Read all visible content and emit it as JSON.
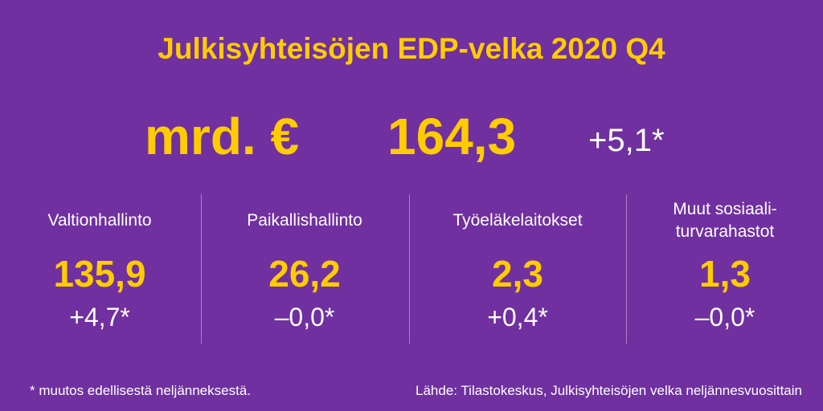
{
  "title": "Julkisyhteisöjen EDP-velka 2020 Q4",
  "headline": {
    "unit": "mrd. €",
    "total": "164,3",
    "change": "+5,1*"
  },
  "sectors": [
    {
      "label": "Valtionhallinto",
      "value": "135,9",
      "change": "+4,7*"
    },
    {
      "label": "Paikallishallinto",
      "value": "26,2",
      "change": "–0,0*"
    },
    {
      "label": "Työeläkelaitokset",
      "value": "2,3",
      "change": "+0,4*"
    },
    {
      "label": "Muut sosiaali-\nturvarahastot",
      "value": "1,3",
      "change": "–0,0*"
    }
  ],
  "footnote": "* muutos edellisestä neljänneksestä.",
  "source": "Lähde: Tilastokeskus, Julkisyhteisöjen velka neljännesvuosittain",
  "colors": {
    "background": "#7030a0",
    "accent": "#ffcc00",
    "text": "#ffffff"
  }
}
